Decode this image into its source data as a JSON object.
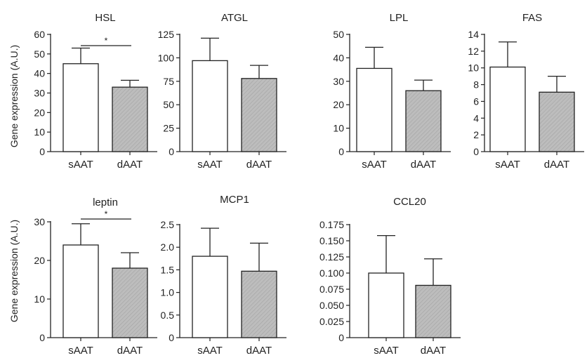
{
  "figure": {
    "ylabel": "Gene expression (A.U.)"
  },
  "chart_data": [
    {
      "type": "bar",
      "title": "HSL",
      "categories": [
        "sAAT",
        "dAAT"
      ],
      "values": [
        45,
        33
      ],
      "error": [
        8,
        3.5
      ],
      "ylim": [
        0,
        60
      ],
      "yticks": [
        "0",
        "10",
        "20",
        "30",
        "40",
        "50",
        "60"
      ],
      "significance": "*"
    },
    {
      "type": "bar",
      "title": "ATGL",
      "categories": [
        "sAAT",
        "dAAT"
      ],
      "values": [
        97,
        78
      ],
      "error": [
        24,
        14
      ],
      "ylim": [
        0,
        125
      ],
      "yticks": [
        "0",
        "25",
        "50",
        "75",
        "100",
        "125"
      ]
    },
    {
      "type": "bar",
      "title": "LPL",
      "categories": [
        "sAAT",
        "dAAT"
      ],
      "values": [
        35.5,
        26
      ],
      "error": [
        9,
        4.5
      ],
      "ylim": [
        0,
        50
      ],
      "yticks": [
        "0",
        "10",
        "20",
        "30",
        "40",
        "50"
      ]
    },
    {
      "type": "bar",
      "title": "FAS",
      "categories": [
        "sAAT",
        "dAAT"
      ],
      "values": [
        10.1,
        7.1
      ],
      "error": [
        3,
        1.9
      ],
      "ylim": [
        0,
        14
      ],
      "yticks": [
        "0",
        "2",
        "4",
        "6",
        "8",
        "10",
        "12",
        "14"
      ]
    },
    {
      "type": "bar",
      "title": "leptin",
      "categories": [
        "sAAT",
        "dAAT"
      ],
      "values": [
        24,
        18
      ],
      "error": [
        5.5,
        4
      ],
      "ylim": [
        0,
        30
      ],
      "yticks": [
        "0",
        "10",
        "20",
        "30"
      ],
      "significance": "*"
    },
    {
      "type": "bar",
      "title": "MCP1",
      "categories": [
        "sAAT",
        "dAAT"
      ],
      "values": [
        1.8,
        1.47
      ],
      "error": [
        0.62,
        0.62
      ],
      "ylim": [
        0,
        2.5
      ],
      "yticks": [
        "0",
        "0.5",
        "1.0",
        "1.5",
        "2.0",
        "2.5"
      ]
    },
    {
      "type": "bar",
      "title": "CCL20",
      "categories": [
        "sAAT",
        "dAAT"
      ],
      "values": [
        0.1,
        0.081
      ],
      "error": [
        0.058,
        0.041
      ],
      "ylim": [
        0,
        0.175
      ],
      "yticks": [
        "0",
        "0.025",
        "0.050",
        "0.075",
        "0.100",
        "0.125",
        "0.150",
        "0.175"
      ]
    }
  ],
  "colors": {
    "bar_sAAT": "#ffffff",
    "bar_dAAT": "#bdbdbd",
    "axis": "#222222"
  }
}
